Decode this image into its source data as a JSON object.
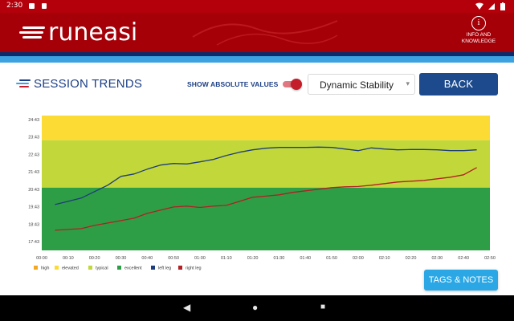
{
  "status_bar": {
    "time": "2:30",
    "icons": [
      "notification-icon",
      "sd-card-icon",
      "wifi-icon",
      "signal-icon",
      "battery-icon"
    ]
  },
  "header": {
    "logo_text": "runeasi",
    "info_label_line1": "INFO AND",
    "info_label_line2": "KNOWLEDGE",
    "info_glyph": "i"
  },
  "toolbar": {
    "title": "SESSION TRENDS",
    "absolute_values_label": "SHOW ABSOLUTE VALUES",
    "absolute_values_on": true,
    "metric_selected": "Dynamic Stability",
    "back_label": "BACK"
  },
  "tags_button_label": "TAGS & NOTES",
  "nav_bar": {
    "back": "◀",
    "home": "●",
    "recents": "■"
  },
  "colors": {
    "brand_red": "#a50008",
    "navy": "#1c3f86",
    "sky": "#3ca3e0",
    "zone_elevated": "#fddb35",
    "zone_typical": "#c2d83a",
    "zone_excellent": "#2e9e46",
    "left_leg": "#1d3c7c",
    "right_leg": "#b21f24"
  },
  "chart_data": {
    "type": "line",
    "y_ticks": [
      "17:43",
      "18:43",
      "19:43",
      "20:43",
      "21:43",
      "22:43",
      "23:43",
      "24:43"
    ],
    "x_ticks": [
      "00:00",
      "00:10",
      "00:20",
      "00:30",
      "00:40",
      "00:50",
      "01:00",
      "01:10",
      "01:20",
      "01:30",
      "01:40",
      "01:50",
      "02:00",
      "02:10",
      "02:20",
      "02:30",
      "02:40",
      "02:50"
    ],
    "ylim": [
      17.05,
      25.43
    ],
    "xlim": [
      0,
      170
    ],
    "zones": [
      {
        "name": "high",
        "from": 25.43,
        "to": 25.43,
        "color": "#f5a623"
      },
      {
        "name": "elevated",
        "from": 23.9,
        "to": 25.43,
        "color": "#fddb35"
      },
      {
        "name": "typical",
        "from": 20.95,
        "to": 23.9,
        "color": "#c2d83a"
      },
      {
        "name": "excellent",
        "from": 17.05,
        "to": 20.95,
        "color": "#2e9e46"
      }
    ],
    "legend": [
      {
        "name": "high",
        "color": "#f5a623"
      },
      {
        "name": "elevated",
        "color": "#fddb35"
      },
      {
        "name": "typical",
        "color": "#c2d83a"
      },
      {
        "name": "excellent",
        "color": "#2e9e46"
      },
      {
        "name": "left leg",
        "color": "#1d3c7c"
      },
      {
        "name": "right leg",
        "color": "#b21f24"
      }
    ],
    "series": [
      {
        "name": "left leg",
        "color": "#1d3c7c",
        "x": [
          5,
          10,
          15,
          20,
          25,
          30,
          35,
          40,
          45,
          50,
          55,
          60,
          65,
          70,
          75,
          80,
          85,
          90,
          95,
          100,
          105,
          110,
          115,
          120,
          125,
          130,
          135,
          140,
          145,
          150,
          155,
          160,
          165
        ],
        "y": [
          19.9,
          20.1,
          20.3,
          20.7,
          21.1,
          21.65,
          21.8,
          22.1,
          22.35,
          22.45,
          22.42,
          22.55,
          22.7,
          22.95,
          23.15,
          23.3,
          23.4,
          23.45,
          23.45,
          23.45,
          23.47,
          23.45,
          23.35,
          23.25,
          23.42,
          23.35,
          23.3,
          23.32,
          23.32,
          23.3,
          23.25,
          23.25,
          23.3
        ]
      },
      {
        "name": "right leg",
        "color": "#b21f24",
        "x": [
          5,
          10,
          15,
          20,
          25,
          30,
          35,
          40,
          45,
          50,
          55,
          60,
          65,
          70,
          75,
          80,
          85,
          90,
          95,
          100,
          105,
          110,
          115,
          120,
          125,
          130,
          135,
          140,
          145,
          150,
          155,
          160,
          165
        ],
        "y": [
          18.3,
          18.35,
          18.4,
          18.6,
          18.75,
          18.9,
          19.05,
          19.35,
          19.55,
          19.75,
          19.8,
          19.72,
          19.8,
          19.85,
          20.1,
          20.35,
          20.42,
          20.5,
          20.65,
          20.75,
          20.85,
          20.95,
          21.0,
          21.02,
          21.1,
          21.2,
          21.3,
          21.35,
          21.4,
          21.5,
          21.6,
          21.75,
          22.2
        ]
      }
    ]
  }
}
